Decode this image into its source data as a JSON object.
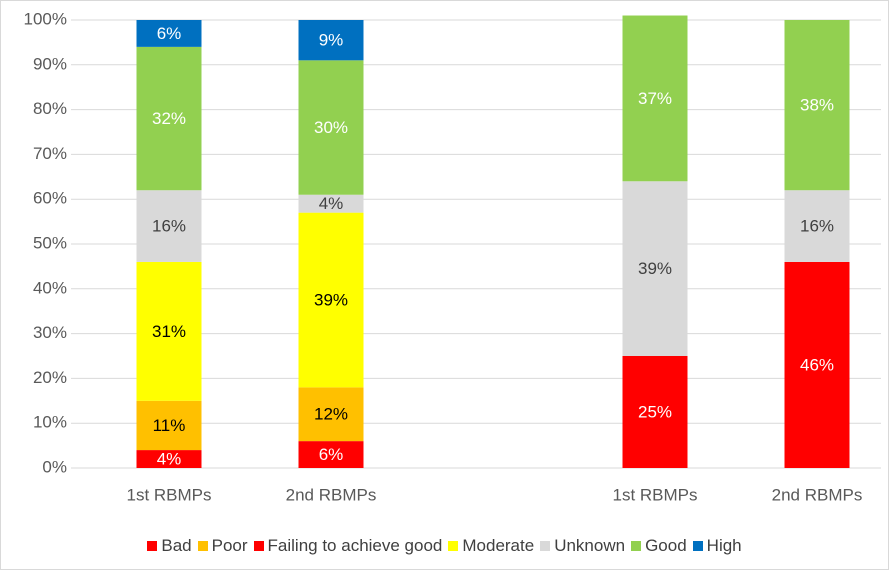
{
  "chart_data": {
    "type": "stacked_bar",
    "categories": [
      "1st RBMPs",
      "2nd RBMPs",
      null,
      "1st RBMPs",
      "2nd RBMPs"
    ],
    "series": [
      {
        "name": "Bad",
        "color": "#ff0000",
        "values": [
          4,
          6,
          null,
          null,
          null
        ],
        "value_labels": [
          "4%",
          "6%",
          null,
          null,
          null
        ]
      },
      {
        "name": "Poor",
        "color": "#ffc000",
        "values": [
          11,
          12,
          null,
          null,
          null
        ],
        "value_labels": [
          "11%",
          "12%",
          null,
          null,
          null
        ]
      },
      {
        "name": "Failing to achieve good",
        "color": "#ff0000",
        "values": [
          null,
          null,
          null,
          25,
          46
        ],
        "value_labels": [
          null,
          null,
          null,
          "25%",
          "46%"
        ]
      },
      {
        "name": "Moderate",
        "color": "#ffff00",
        "values": [
          31,
          39,
          null,
          null,
          null
        ],
        "value_labels": [
          "31%",
          "39%",
          null,
          null,
          null
        ]
      },
      {
        "name": "Unknown",
        "color": "#d9d9d9",
        "values": [
          16,
          4,
          null,
          39,
          16
        ],
        "value_labels": [
          "16%",
          "4%",
          null,
          "39%",
          "16%"
        ]
      },
      {
        "name": "Good",
        "color": "#92d050",
        "values": [
          32,
          30,
          null,
          37,
          38
        ],
        "value_labels": [
          "32%",
          "30%",
          null,
          "37%",
          "38%"
        ]
      },
      {
        "name": "High",
        "color": "#0070c0",
        "values": [
          6,
          9,
          null,
          null,
          null
        ],
        "value_labels": [
          "6%",
          "9%",
          null,
          null,
          null
        ]
      }
    ],
    "ylim": [
      0,
      100
    ],
    "yticks": [
      {
        "value": 0,
        "label": "0%"
      },
      {
        "value": 10,
        "label": "10%"
      },
      {
        "value": 20,
        "label": "20%"
      },
      {
        "value": 30,
        "label": "30%"
      },
      {
        "value": 40,
        "label": "40%"
      },
      {
        "value": 50,
        "label": "50%"
      },
      {
        "value": 60,
        "label": "60%"
      },
      {
        "value": 70,
        "label": "70%"
      },
      {
        "value": 80,
        "label": "80%"
      },
      {
        "value": 90,
        "label": "90%"
      },
      {
        "value": 100,
        "label": "100%"
      }
    ],
    "grid": true,
    "legend": "bottom"
  }
}
